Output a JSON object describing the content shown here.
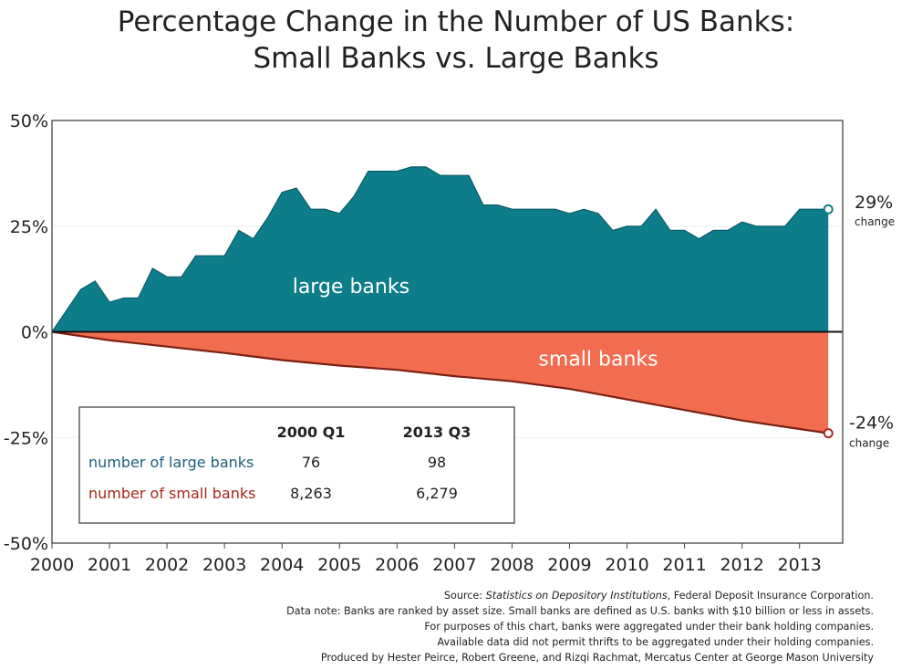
{
  "title_line1": "Percentage Change in the Number of US Banks:",
  "title_line2": "Small Banks vs. Large Banks",
  "chart_data": {
    "type": "area",
    "ylim": [
      -50,
      50
    ],
    "yticks": [
      "50%",
      "25%",
      "0%",
      "-25%",
      "-50%"
    ],
    "xlim": [
      2000,
      2013.75
    ],
    "xticks": [
      "2000",
      "2001",
      "2002",
      "2003",
      "2004",
      "2005",
      "2006",
      "2007",
      "2008",
      "2009",
      "2010",
      "2011",
      "2012",
      "2013"
    ],
    "colors": {
      "large": "#0e7d8a",
      "small": "#f26d50",
      "large_text": "#1b5f78",
      "small_text": "#a9261d"
    },
    "series": [
      {
        "name": "large banks",
        "x": [
          2000,
          2000.25,
          2000.5,
          2000.75,
          2001,
          2001.25,
          2001.5,
          2001.75,
          2002,
          2002.25,
          2002.5,
          2002.75,
          2003,
          2003.25,
          2003.5,
          2003.75,
          2004,
          2004.25,
          2004.5,
          2004.75,
          2005,
          2005.25,
          2005.5,
          2005.75,
          2006,
          2006.25,
          2006.5,
          2006.75,
          2007,
          2007.25,
          2007.5,
          2007.75,
          2008,
          2008.25,
          2008.5,
          2008.75,
          2009,
          2009.25,
          2009.5,
          2009.75,
          2010,
          2010.25,
          2010.5,
          2010.75,
          2011,
          2011.25,
          2011.5,
          2011.75,
          2012,
          2012.25,
          2012.5,
          2012.75,
          2013,
          2013.25,
          2013.5
        ],
        "values": [
          0,
          5,
          10,
          12,
          7,
          8,
          8,
          15,
          13,
          13,
          18,
          18,
          18,
          24,
          22,
          27,
          33,
          34,
          29,
          29,
          28,
          32,
          38,
          38,
          38,
          39,
          39,
          37,
          37,
          37,
          30,
          30,
          29,
          29,
          29,
          29,
          28,
          29,
          28,
          24,
          25,
          25,
          29,
          24,
          24,
          22,
          24,
          24,
          26,
          25,
          25,
          25,
          29,
          29,
          29
        ]
      },
      {
        "name": "small banks",
        "x": [
          2000,
          2001,
          2002,
          2003,
          2004,
          2005,
          2006,
          2007,
          2008,
          2009,
          2010,
          2011,
          2012,
          2013,
          2013.5
        ],
        "values": [
          0,
          -2,
          -3.5,
          -5,
          -6.7,
          -8,
          -9,
          -10.5,
          -11.7,
          -13.5,
          -16,
          -18.5,
          -21,
          -23,
          -24
        ]
      }
    ],
    "area_labels": {
      "large": "large banks",
      "small": "small banks"
    },
    "end_labels": {
      "large": {
        "value": "29%",
        "sub": "change"
      },
      "small": {
        "value": "-24%",
        "sub": "change"
      }
    },
    "table": {
      "col_headers": [
        "2000 Q1",
        "2013 Q3"
      ],
      "rows": [
        {
          "label": "number of large banks",
          "values": [
            "76",
            "98"
          ]
        },
        {
          "label": "number of small banks",
          "values": [
            "8,263",
            "6,279"
          ]
        }
      ]
    }
  },
  "notes": {
    "source_prefix": "Source: ",
    "source_title": "Statistics on Depository Institutions",
    "source_suffix": ", Federal Deposit Insurance Corporation.",
    "line2": "Data note: Banks are ranked by asset size. Small banks are defined as U.S. banks with $10 billion or less in assets.",
    "line3": "For purposes of this chart, banks were aggregated under their bank holding companies.",
    "line4": "Available data did not permit thrifts to be aggregated under their holding companies.",
    "line5": "Produced by Hester Peirce, Robert Greene, and Rizqi Rachmat, Mercatus Center at George Mason University"
  }
}
